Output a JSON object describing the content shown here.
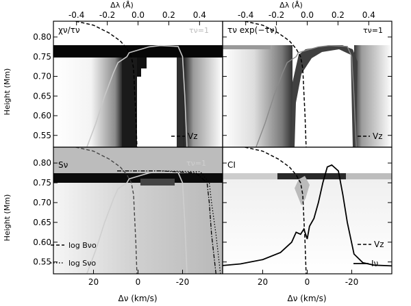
{
  "figure": {
    "top_axis_label": "Δλ (Å)",
    "bottom_axis_label": "Δν (km/s)",
    "y_axis_label": "Height (Mm)",
    "top_ticks": [
      {
        "label": "-0.4",
        "value": -0.4
      },
      {
        "label": "-0.2",
        "value": -0.2
      },
      {
        "label": "0.0",
        "value": 0.0
      },
      {
        "label": "0.2",
        "value": 0.2
      },
      {
        "label": "0.4",
        "value": 0.4
      }
    ],
    "bottom_ticks": [
      {
        "label": "20",
        "value": 20
      },
      {
        "label": "0",
        "value": 0
      },
      {
        "label": "-20",
        "value": -20
      }
    ],
    "left_ticks": [
      {
        "label": "0.80",
        "value": 0.8
      },
      {
        "label": "0.75",
        "value": 0.75
      },
      {
        "label": "0.70",
        "value": 0.7
      },
      {
        "label": "0.65",
        "value": 0.65
      },
      {
        "label": "0.60",
        "value": 0.6
      },
      {
        "label": "0.55",
        "value": 0.55
      }
    ],
    "panels": {
      "top_left": {
        "title": "χν/τν",
        "tau_label": "τν=1",
        "legend_vz": "Vz"
      },
      "top_right": {
        "title": "τν exp(−τν)",
        "tau_label": "τν=1",
        "legend_vz": "Vz"
      },
      "bottom_left": {
        "title": "Sν",
        "tau_label": "τν=1",
        "legend_logB": "log Bνo",
        "legend_logS": "log Sνo"
      },
      "bottom_right": {
        "title": "CI",
        "legend_vz": "Vz",
        "legend_iv": "Iν"
      }
    }
  },
  "chart_data": {
    "type": "line",
    "x_axis": {
      "label": "Δν (km/s)",
      "range": [
        38,
        -38
      ],
      "reversed": true
    },
    "x2_axis": {
      "label": "Δλ (Å)",
      "range": [
        -0.55,
        0.55
      ]
    },
    "y_axis": {
      "label": "Height (Mm)",
      "range": [
        0.52,
        0.84
      ]
    },
    "tau1_curve": {
      "name": "τν=1",
      "points": [
        [
          23,
          0.52
        ],
        [
          19,
          0.58
        ],
        [
          15,
          0.65
        ],
        [
          11,
          0.71
        ],
        [
          9,
          0.735
        ],
        [
          5,
          0.75
        ],
        [
          4,
          0.76
        ],
        [
          1,
          0.765
        ],
        [
          -5,
          0.775
        ],
        [
          -10,
          0.778
        ],
        [
          -18,
          0.776
        ],
        [
          -20,
          0.75
        ],
        [
          -21,
          0.65
        ],
        [
          -22,
          0.52
        ]
      ]
    },
    "vz_curve": {
      "name": "Vz",
      "points": [
        [
          28,
          0.84
        ],
        [
          20,
          0.83
        ],
        [
          13,
          0.81
        ],
        [
          8,
          0.79
        ],
        [
          5,
          0.77
        ],
        [
          3,
          0.75
        ],
        [
          2,
          0.72
        ],
        [
          1.5,
          0.66
        ],
        [
          1,
          0.6
        ],
        [
          0.5,
          0.52
        ]
      ]
    },
    "log_B": {
      "name": "log Bνo",
      "points": [
        [
          -35,
          0.52
        ],
        [
          -33,
          0.62
        ],
        [
          -32,
          0.7
        ],
        [
          -31,
          0.75
        ],
        [
          -26,
          0.775
        ],
        [
          -10,
          0.78
        ],
        [
          10,
          0.78
        ]
      ]
    },
    "log_S": {
      "name": "log Sνo",
      "points": [
        [
          -37,
          0.52
        ],
        [
          -35,
          0.62
        ],
        [
          -33,
          0.7
        ],
        [
          -32,
          0.75
        ],
        [
          -28,
          0.778
        ],
        [
          -10,
          0.78
        ]
      ]
    },
    "intensity_profile": {
      "name": "Iν",
      "points": [
        [
          38,
          0.541
        ],
        [
          30,
          0.545
        ],
        [
          20,
          0.556
        ],
        [
          12,
          0.574
        ],
        [
          7,
          0.6
        ],
        [
          5,
          0.625
        ],
        [
          3,
          0.62
        ],
        [
          1.5,
          0.633
        ],
        [
          0,
          0.608
        ],
        [
          -1,
          0.64
        ],
        [
          -3,
          0.66
        ],
        [
          -5,
          0.7
        ],
        [
          -7,
          0.75
        ],
        [
          -9,
          0.79
        ],
        [
          -11,
          0.795
        ],
        [
          -14,
          0.78
        ],
        [
          -16,
          0.72
        ],
        [
          -18,
          0.65
        ],
        [
          -21,
          0.57
        ],
        [
          -25,
          0.548
        ],
        [
          -30,
          0.542
        ],
        [
          -38,
          0.54
        ]
      ]
    }
  }
}
